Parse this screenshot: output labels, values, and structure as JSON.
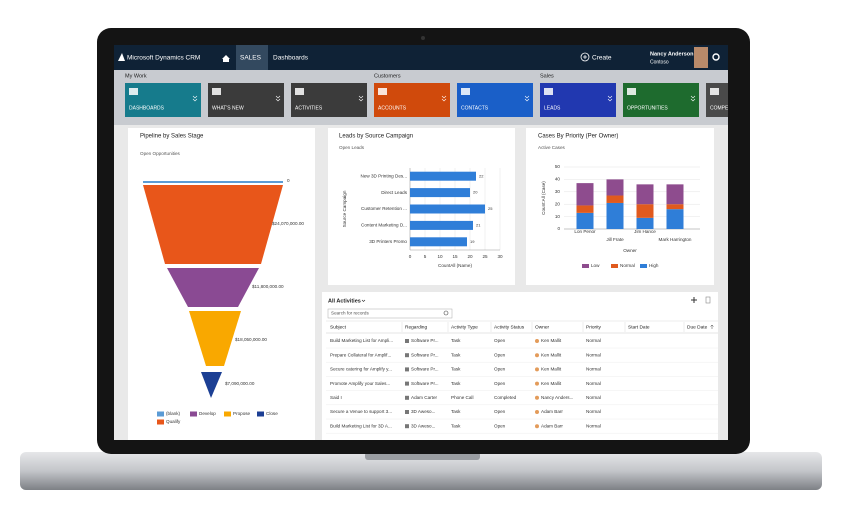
{
  "nav": {
    "app": "Microsoft Dynamics CRM",
    "tab": "SALES",
    "area": "Dashboards",
    "create": "Create",
    "user": "Nancy Anderson",
    "org": "Contoso"
  },
  "groups": [
    {
      "label": "My Work",
      "tiles": [
        "DASHBOARDS",
        "WHAT'S NEW",
        "ACTIVITIES"
      ]
    },
    {
      "label": "Customers",
      "tiles": [
        "ACCOUNTS",
        "CONTACTS"
      ]
    },
    {
      "label": "Sales",
      "tiles": [
        "LEADS",
        "OPPORTUNITIES",
        "COMPE"
      ]
    }
  ],
  "chart_data": [
    {
      "type": "funnel",
      "title": "Pipeline by Sales Stage",
      "subtitle": "Open Opportunities",
      "categories": [
        "(blank)",
        "Qualify",
        "Develop",
        "Propose",
        "Close"
      ],
      "values": [
        0,
        24070000,
        11800000,
        18050000,
        7090000
      ],
      "value_labels": [
        "0",
        "$24,070,000.00",
        "$11,800,000.00",
        "$18,050,000.00",
        "$7,090,000.00"
      ],
      "colors": [
        "#5b9bd5",
        "#e8561a",
        "#8a4a93",
        "#f9a800",
        "#1c3f94"
      ]
    },
    {
      "type": "hbar",
      "title": "Leads by Source Campaign",
      "subtitle": "Open Leads",
      "categories": [
        "New 3D Printing Des...",
        "Direct Leads",
        "Customer Retention ...",
        "Content Marketing D...",
        "3D Printers Promo"
      ],
      "values": [
        22,
        20,
        25,
        21,
        19
      ],
      "color": "#2f7ed8",
      "xlim": [
        0,
        30
      ],
      "xticks": [
        0,
        5,
        10,
        15,
        20,
        25,
        30
      ],
      "xlabel": "CountAll (Name)",
      "ylabel": "Source Campaign",
      "grid": true
    },
    {
      "type": "stacked_bar",
      "title": "Cases By Priority (Per Owner)",
      "subtitle": "Active Cases",
      "categories": [
        "Lon Penor",
        "Jill Frate",
        "Jim Hance",
        "Mark Harrington"
      ],
      "series": [
        {
          "name": "High",
          "color": "#2f7ed8",
          "values": [
            13,
            21,
            9,
            16
          ]
        },
        {
          "name": "Normal",
          "color": "#e05a1e",
          "values": [
            6,
            6,
            11,
            4
          ]
        },
        {
          "name": "Low",
          "color": "#8e4c8e",
          "values": [
            18,
            13,
            16,
            16
          ]
        }
      ],
      "ylim": [
        0,
        50
      ],
      "yticks": [
        0,
        10,
        20,
        30,
        40,
        50
      ],
      "xlabel": "Owner",
      "ylabel": "Count:All (Case)",
      "grid": true
    }
  ],
  "activities": {
    "title": "All Activities",
    "search": "Search for records",
    "columns": [
      "Subject",
      "Regarding",
      "Activity Type",
      "Activity Status",
      "Owner",
      "Priority",
      "Start Date",
      "Due Date"
    ],
    "rows": [
      [
        "Build Marketing List for Ampli...",
        "Software Pr...",
        "Task",
        "Open",
        "Ken Mallit",
        "Normal"
      ],
      [
        "Prepare Collateral for Amplif...",
        "Software Pr...",
        "Task",
        "Open",
        "Ken Mallit",
        "Normal"
      ],
      [
        "Secure catering for Amplify y...",
        "Software Pr...",
        "Task",
        "Open",
        "Ken Mallit",
        "Normal"
      ],
      [
        "Promote Amplify your Sales...",
        "Software Pr...",
        "Task",
        "Open",
        "Ken Mallit",
        "Normal"
      ],
      [
        "Said I",
        "Adam Carter",
        "Phone Call",
        "Completed",
        "Nancy Anders...",
        "Normal"
      ],
      [
        "Secure a Venue to support 3...",
        "3D Aweso...",
        "Task",
        "Open",
        "Adam Barr",
        "Normal"
      ],
      [
        "Build Marketing List for 3D A...",
        "3D Aweso...",
        "Task",
        "Open",
        "Adam Barr",
        "Normal"
      ]
    ]
  }
}
